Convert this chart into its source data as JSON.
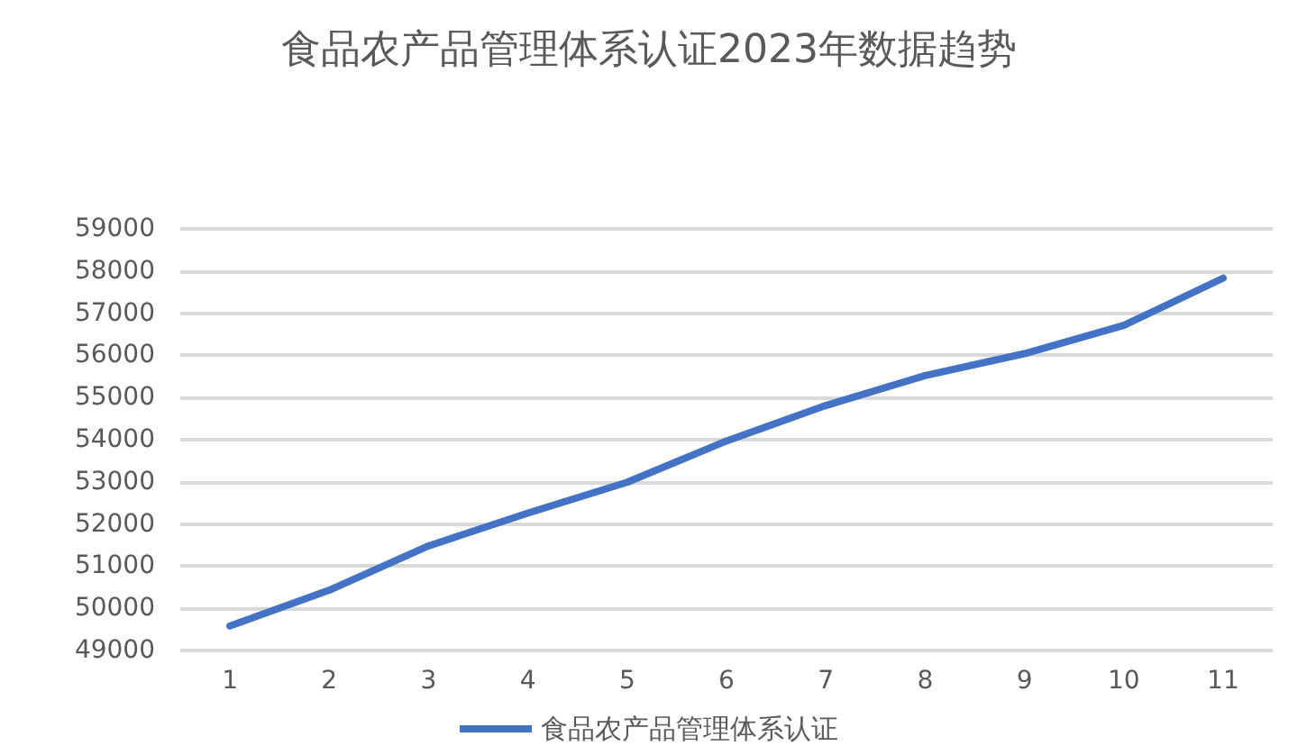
{
  "chart_data": {
    "type": "line",
    "title": "食品农产品管理体系认证2023年数据趋势",
    "categories": [
      "1",
      "2",
      "3",
      "4",
      "5",
      "6",
      "7",
      "8",
      "9",
      "10",
      "11"
    ],
    "series": [
      {
        "name": "食品农产品管理体系认证",
        "color": "#4472c4",
        "values": [
          49580,
          50430,
          51480,
          52260,
          52990,
          53970,
          54810,
          55520,
          56040,
          56710,
          57830
        ]
      }
    ],
    "ylim": [
      49000,
      59000
    ],
    "yticks": [
      49000,
      50000,
      51000,
      52000,
      53000,
      54000,
      55000,
      56000,
      57000,
      58000,
      59000
    ],
    "grid": "y",
    "legend": "bottom",
    "marker": "none",
    "line_style": "solid"
  }
}
